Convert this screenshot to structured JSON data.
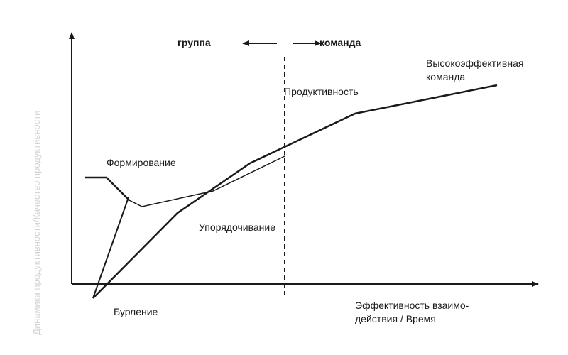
{
  "y_axis_label": "Динамика продуктивности/Качество продуктивности",
  "x_axis_label": {
    "line1": "Эффективность взаимо-",
    "line2": "действия / Время"
  },
  "stage_labels": {
    "forming": "Формирование",
    "storming": "Бурление",
    "norming": "Упорядочивание",
    "performing": "Продуктивность",
    "high_performing_line1": "Высокоэффективная",
    "high_performing_line2": "команда"
  },
  "boundary_labels": {
    "group": "группа",
    "team": "команда"
  },
  "colors": {
    "line": "#1a1a1a",
    "faint_text": "#d4d4d4",
    "background": "#ffffff"
  }
}
